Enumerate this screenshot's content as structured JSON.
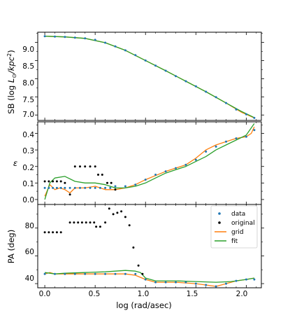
{
  "colors": {
    "data": "#1f77b4",
    "original": "#000000",
    "grid": "#ff7f0e",
    "fit": "#2ca02c"
  },
  "chart_data": {
    "type": "line",
    "x_label": "log (rad/asec)",
    "x_ticks": [
      "0.0",
      "0.5",
      "1.0",
      "1.5",
      "2.0"
    ],
    "xlim": [
      -0.07,
      2.15
    ],
    "legend": {
      "placement": "upper-right of bottom panel",
      "entries": [
        "data",
        "original",
        "grid",
        "fit"
      ]
    },
    "panels": [
      {
        "ylabel": "SB (log L_⊙/kpc²)",
        "ylabel_main": "SB (log ",
        "ylabel_math": "L",
        "ylabel_sub": "⊙",
        "ylabel_math2": "/kpc",
        "ylabel_sup": "2",
        "ylabel_end": ")",
        "ylim": [
          6.85,
          9.28
        ],
        "y_ticks": [
          "7.0",
          "7.5",
          "8.0",
          "8.5",
          "9.0"
        ],
        "series": [
          {
            "name": "data",
            "points": [
              [
                0.0,
                9.17
              ],
              [
                0.1,
                9.16
              ],
              [
                0.2,
                9.15
              ],
              [
                0.3,
                9.13
              ],
              [
                0.4,
                9.11
              ],
              [
                0.5,
                9.07
              ],
              [
                0.6,
                8.99
              ],
              [
                0.7,
                8.89
              ],
              [
                0.8,
                8.78
              ],
              [
                0.9,
                8.65
              ],
              [
                1.0,
                8.5
              ],
              [
                1.1,
                8.36
              ],
              [
                1.2,
                8.22
              ],
              [
                1.3,
                8.07
              ],
              [
                1.4,
                7.93
              ],
              [
                1.5,
                7.79
              ],
              [
                1.6,
                7.64
              ],
              [
                1.7,
                7.49
              ],
              [
                1.8,
                7.33
              ],
              [
                1.9,
                7.15
              ],
              [
                2.0,
                7.02
              ],
              [
                2.08,
                6.92
              ]
            ]
          },
          {
            "name": "grid",
            "points": [
              [
                0.0,
                9.17
              ],
              [
                0.2,
                9.15
              ],
              [
                0.4,
                9.11
              ],
              [
                0.6,
                8.99
              ],
              [
                0.8,
                8.78
              ],
              [
                1.0,
                8.5
              ],
              [
                1.2,
                8.22
              ],
              [
                1.4,
                7.93
              ],
              [
                1.6,
                7.64
              ],
              [
                1.8,
                7.33
              ],
              [
                1.95,
                7.08
              ],
              [
                2.08,
                6.92
              ]
            ]
          },
          {
            "name": "fit",
            "points": [
              [
                0.0,
                9.17
              ],
              [
                0.2,
                9.15
              ],
              [
                0.4,
                9.11
              ],
              [
                0.6,
                8.99
              ],
              [
                0.8,
                8.78
              ],
              [
                1.0,
                8.5
              ],
              [
                1.2,
                8.22
              ],
              [
                1.4,
                7.93
              ],
              [
                1.6,
                7.64
              ],
              [
                1.8,
                7.33
              ],
              [
                1.95,
                7.1
              ],
              [
                2.08,
                6.93
              ]
            ]
          }
        ]
      },
      {
        "ylabel": "ε",
        "ylim": [
          -0.03,
          0.47
        ],
        "y_ticks": [
          "0.0",
          "0.1",
          "0.2",
          "0.3",
          "0.4"
        ],
        "series": [
          {
            "name": "data",
            "points": [
              [
                0.0,
                0.07
              ],
              [
                0.04,
                0.07
              ],
              [
                0.08,
                0.07
              ],
              [
                0.12,
                0.07
              ],
              [
                0.16,
                0.07
              ],
              [
                0.2,
                0.07
              ],
              [
                0.25,
                0.07
              ],
              [
                0.3,
                0.07
              ],
              [
                0.35,
                0.07
              ],
              [
                0.4,
                0.07
              ],
              [
                0.45,
                0.07
              ],
              [
                0.5,
                0.07
              ],
              [
                0.55,
                0.07
              ],
              [
                0.6,
                0.07
              ],
              [
                0.65,
                0.07
              ],
              [
                0.7,
                0.08
              ],
              [
                0.8,
                0.08
              ],
              [
                0.9,
                0.09
              ],
              [
                1.0,
                0.12
              ],
              [
                1.1,
                0.15
              ],
              [
                1.2,
                0.17
              ],
              [
                1.3,
                0.19
              ],
              [
                1.4,
                0.21
              ],
              [
                1.5,
                0.24
              ],
              [
                1.6,
                0.29
              ],
              [
                1.7,
                0.32
              ],
              [
                1.8,
                0.35
              ],
              [
                1.9,
                0.37
              ],
              [
                2.0,
                0.38
              ],
              [
                2.08,
                0.42
              ]
            ]
          },
          {
            "name": "original",
            "points": [
              [
                0.0,
                0.11
              ],
              [
                0.04,
                0.11
              ],
              [
                0.08,
                0.11
              ],
              [
                0.12,
                0.11
              ],
              [
                0.16,
                0.11
              ],
              [
                0.2,
                0.1
              ],
              [
                0.25,
                0.03
              ],
              [
                0.3,
                0.2
              ],
              [
                0.35,
                0.2
              ],
              [
                0.4,
                0.2
              ],
              [
                0.45,
                0.2
              ],
              [
                0.5,
                0.2
              ],
              [
                0.53,
                0.15
              ],
              [
                0.57,
                0.15
              ],
              [
                0.62,
                0.1
              ],
              [
                0.66,
                0.1
              ],
              [
                0.7,
                0.06
              ]
            ]
          },
          {
            "name": "grid",
            "points": [
              [
                0.0,
                0.02
              ],
              [
                0.05,
                0.09
              ],
              [
                0.1,
                0.06
              ],
              [
                0.15,
                0.07
              ],
              [
                0.2,
                0.06
              ],
              [
                0.25,
                0.04
              ],
              [
                0.3,
                0.07
              ],
              [
                0.4,
                0.07
              ],
              [
                0.5,
                0.08
              ],
              [
                0.6,
                0.06
              ],
              [
                0.7,
                0.06
              ],
              [
                0.8,
                0.07
              ],
              [
                0.9,
                0.09
              ],
              [
                1.0,
                0.12
              ],
              [
                1.2,
                0.17
              ],
              [
                1.4,
                0.21
              ],
              [
                1.5,
                0.25
              ],
              [
                1.6,
                0.3
              ],
              [
                1.7,
                0.33
              ],
              [
                1.8,
                0.35
              ],
              [
                1.9,
                0.37
              ],
              [
                2.0,
                0.38
              ],
              [
                2.05,
                0.4
              ],
              [
                2.08,
                0.44
              ]
            ]
          },
          {
            "name": "fit",
            "points": [
              [
                0.0,
                0.0
              ],
              [
                0.05,
                0.1
              ],
              [
                0.1,
                0.13
              ],
              [
                0.2,
                0.14
              ],
              [
                0.3,
                0.11
              ],
              [
                0.4,
                0.1
              ],
              [
                0.5,
                0.1
              ],
              [
                0.6,
                0.09
              ],
              [
                0.7,
                0.07
              ],
              [
                0.8,
                0.07
              ],
              [
                0.9,
                0.08
              ],
              [
                1.0,
                0.1
              ],
              [
                1.1,
                0.13
              ],
              [
                1.2,
                0.16
              ],
              [
                1.3,
                0.18
              ],
              [
                1.4,
                0.2
              ],
              [
                1.5,
                0.23
              ],
              [
                1.6,
                0.26
              ],
              [
                1.7,
                0.3
              ],
              [
                1.8,
                0.33
              ],
              [
                1.9,
                0.36
              ],
              [
                2.0,
                0.39
              ],
              [
                2.08,
                0.46
              ]
            ]
          }
        ]
      },
      {
        "ylabel": "PA (deg)",
        "ylim": [
          37,
          97
        ],
        "y_ticks": [
          "40",
          "60",
          "80"
        ],
        "series": [
          {
            "name": "data",
            "points": [
              [
                0.0,
                47
              ],
              [
                0.1,
                47
              ],
              [
                0.2,
                47
              ],
              [
                0.3,
                47
              ],
              [
                0.4,
                47
              ],
              [
                0.5,
                47
              ],
              [
                0.6,
                47
              ],
              [
                0.7,
                47
              ],
              [
                0.8,
                47
              ],
              [
                0.9,
                47
              ],
              [
                1.0,
                43
              ],
              [
                1.1,
                41
              ],
              [
                1.2,
                41
              ],
              [
                1.3,
                41
              ],
              [
                1.4,
                41
              ],
              [
                1.5,
                40
              ],
              [
                1.6,
                39
              ],
              [
                1.7,
                38
              ],
              [
                1.8,
                40
              ],
              [
                1.9,
                42
              ],
              [
                2.0,
                43
              ],
              [
                2.08,
                43
              ]
            ]
          },
          {
            "name": "original",
            "points": [
              [
                0.0,
                77
              ],
              [
                0.04,
                77
              ],
              [
                0.08,
                77
              ],
              [
                0.12,
                77
              ],
              [
                0.16,
                77
              ],
              [
                0.25,
                84
              ],
              [
                0.29,
                84
              ],
              [
                0.33,
                84
              ],
              [
                0.37,
                84
              ],
              [
                0.41,
                84
              ],
              [
                0.45,
                84
              ],
              [
                0.49,
                84
              ],
              [
                0.51,
                81
              ],
              [
                0.55,
                81
              ],
              [
                0.6,
                84
              ],
              [
                0.64,
                94
              ],
              [
                0.68,
                90
              ],
              [
                0.72,
                91
              ],
              [
                0.76,
                92
              ],
              [
                0.8,
                88
              ],
              [
                0.84,
                82
              ],
              [
                0.88,
                66
              ],
              [
                0.93,
                53
              ],
              [
                0.97,
                47
              ]
            ]
          },
          {
            "name": "grid",
            "points": [
              [
                0.0,
                47
              ],
              [
                0.05,
                48
              ],
              [
                0.1,
                47
              ],
              [
                0.2,
                47
              ],
              [
                0.3,
                47
              ],
              [
                0.4,
                47
              ],
              [
                0.5,
                47
              ],
              [
                0.6,
                47
              ],
              [
                0.7,
                47
              ],
              [
                0.8,
                47
              ],
              [
                0.9,
                46
              ],
              [
                1.0,
                43
              ],
              [
                1.1,
                41
              ],
              [
                1.3,
                41
              ],
              [
                1.5,
                40
              ],
              [
                1.6,
                39
              ],
              [
                1.7,
                38
              ],
              [
                1.8,
                40
              ],
              [
                1.9,
                42
              ],
              [
                2.0,
                43
              ],
              [
                2.08,
                44
              ]
            ]
          },
          {
            "name": "fit",
            "points": [
              [
                0.0,
                48
              ],
              [
                0.1,
                47
              ],
              [
                0.2,
                47.5
              ],
              [
                0.4,
                48
              ],
              [
                0.6,
                48.5
              ],
              [
                0.8,
                49.5
              ],
              [
                0.9,
                49
              ],
              [
                0.95,
                48
              ],
              [
                1.0,
                44
              ],
              [
                1.1,
                42
              ],
              [
                1.3,
                42
              ],
              [
                1.5,
                41.5
              ],
              [
                1.7,
                41
              ],
              [
                1.85,
                41.5
              ],
              [
                2.0,
                43
              ],
              [
                2.08,
                44
              ]
            ]
          }
        ]
      }
    ]
  }
}
